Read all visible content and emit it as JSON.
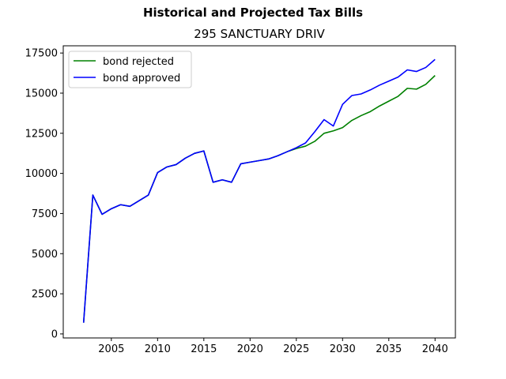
{
  "figure": {
    "suptitle": "Historical and Projected Tax Bills",
    "title": "295 SANCTUARY DRIV"
  },
  "chart_data": {
    "type": "line",
    "title": "295 SANCTUARY DRIV",
    "suptitle": "Historical and Projected Tax Bills",
    "xlabel": "",
    "ylabel": "",
    "xlim": [
      1999.8,
      2042.2
    ],
    "ylim": [
      -250,
      17950
    ],
    "xticks": [
      2005,
      2010,
      2015,
      2020,
      2025,
      2030,
      2035,
      2040
    ],
    "yticks": [
      0,
      2500,
      5000,
      7500,
      10000,
      12500,
      15000,
      17500
    ],
    "grid": false,
    "legend": {
      "placement": "upper-left",
      "entries": [
        "bond rejected",
        "bond approved"
      ]
    },
    "series": [
      {
        "name": "bond rejected",
        "color": "#008000",
        "x": [
          2002,
          2003,
          2004,
          2005,
          2006,
          2007,
          2008,
          2009,
          2010,
          2011,
          2012,
          2013,
          2014,
          2015,
          2016,
          2017,
          2018,
          2019,
          2020,
          2021,
          2022,
          2023,
          2024,
          2025,
          2026,
          2027,
          2028,
          2029,
          2030,
          2031,
          2032,
          2033,
          2034,
          2035,
          2036,
          2037,
          2038,
          2039,
          2040
        ],
        "values": [
          700,
          8650,
          7450,
          7800,
          8050,
          7950,
          8300,
          8650,
          10050,
          10400,
          10550,
          10950,
          11250,
          11400,
          9450,
          9600,
          9450,
          10600,
          10700,
          10800,
          10900,
          11100,
          11350,
          11550,
          11700,
          12000,
          12500,
          12650,
          12850,
          13300,
          13600,
          13850,
          14200,
          14500,
          14800,
          15300,
          15250,
          15550,
          16100
        ]
      },
      {
        "name": "bond approved",
        "color": "#0000ff",
        "x": [
          2002,
          2003,
          2004,
          2005,
          2006,
          2007,
          2008,
          2009,
          2010,
          2011,
          2012,
          2013,
          2014,
          2015,
          2016,
          2017,
          2018,
          2019,
          2020,
          2021,
          2022,
          2023,
          2024,
          2025,
          2026,
          2027,
          2028,
          2029,
          2030,
          2031,
          2032,
          2033,
          2034,
          2035,
          2036,
          2037,
          2038,
          2039,
          2040
        ],
        "values": [
          700,
          8650,
          7450,
          7800,
          8050,
          7950,
          8300,
          8650,
          10050,
          10400,
          10550,
          10950,
          11250,
          11400,
          9450,
          9600,
          9450,
          10600,
          10700,
          10800,
          10900,
          11100,
          11350,
          11600,
          11900,
          12600,
          13350,
          12950,
          14300,
          14850,
          14950,
          15200,
          15500,
          15750,
          16000,
          16450,
          16350,
          16600,
          17100
        ]
      }
    ]
  }
}
